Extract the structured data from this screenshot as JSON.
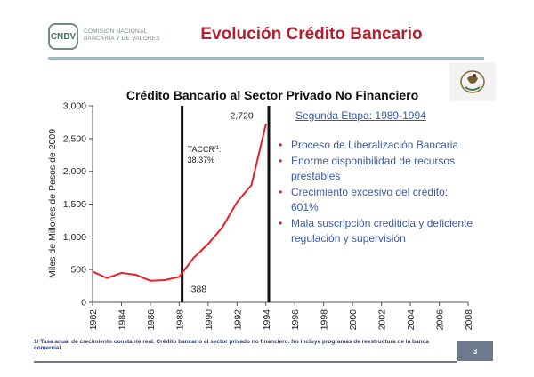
{
  "header": {
    "logo_mark": "CNBV",
    "logo_line1": "COMISION NACIONAL",
    "logo_line2": "BANCARIA Y DE VALORES",
    "title": "Evolución Crédito Bancario"
  },
  "chart_data": {
    "type": "line",
    "title": "Crédito Bancario al Sector Privado No Financiero",
    "ylabel": "Miles de Millones de Pesos de 2009",
    "xlabel": "",
    "xlim": [
      1982,
      2008
    ],
    "ylim": [
      0,
      3000
    ],
    "x_ticks": [
      "1982",
      "1984",
      "1986",
      "1988",
      "1990",
      "1992",
      "1994",
      "1996",
      "1998",
      "2000",
      "2002",
      "2004",
      "2006",
      "2008"
    ],
    "y_ticks": [
      "0",
      "500",
      "1,000",
      "1,500",
      "2,000",
      "2,500",
      "3,000"
    ],
    "color": "#e8202a",
    "series": [
      {
        "x": [
          1982,
          1983,
          1984,
          1985,
          1986,
          1987,
          1988,
          1989,
          1990,
          1991,
          1992,
          1993,
          1994
        ],
        "values": [
          470,
          370,
          450,
          420,
          330,
          340,
          388,
          680,
          890,
          1150,
          1530,
          1790,
          2720
        ]
      }
    ],
    "vlines": [
      1988.2,
      1994.2
    ],
    "annotations": {
      "peak_label": "2,720",
      "start_label": "388",
      "taccr_label": "TACCR",
      "taccr_sup": "/1",
      "taccr_value": "38.37%"
    },
    "grid": false
  },
  "panel": {
    "stage_title": "Segunda Etapa: 1989-1994",
    "bullets": [
      "Proceso de Liberalización Bancaria",
      "Enorme disponibilidad de recursos prestables",
      "Crecimiento excesivo del crédito: 601%",
      "Mala suscripción crediticia y deficiente regulación y supervisión"
    ]
  },
  "footer": {
    "note": "1/ Tasa anual de crecimiento constante real. Crédito bancario al sector privado no financiero. No incluye programas de reestructura de la banca comercial.",
    "page": "3"
  }
}
